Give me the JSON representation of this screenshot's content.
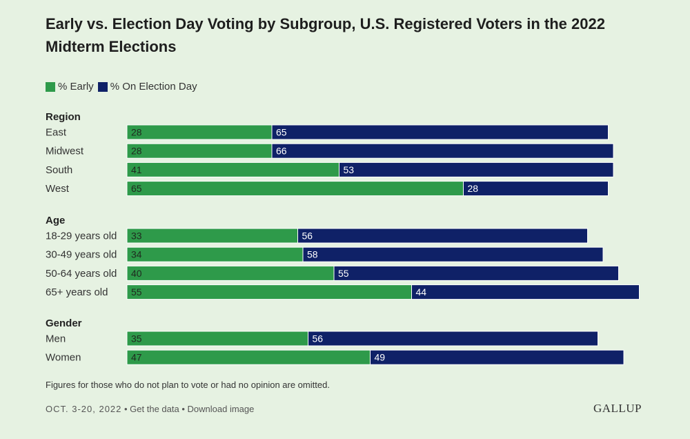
{
  "header": {
    "title": "Early vs. Election Day Voting by Subgroup, U.S. Registered Voters in the 2022 Midterm Elections"
  },
  "legend": [
    {
      "label": "% Early",
      "color": "#2e9a4a"
    },
    {
      "label": "% On Election Day",
      "color": "#0f2167"
    }
  ],
  "chart_data": {
    "type": "bar",
    "orientation": "horizontal",
    "stacked": true,
    "title": "Early vs. Election Day Voting by Subgroup, U.S. Registered Voters in the 2022 Midterm Elections",
    "xlim": [
      0,
      100
    ],
    "grid": false,
    "legend_placement": "top-left",
    "series": [
      {
        "name": "% Early",
        "color": "#2e9a4a"
      },
      {
        "name": "% On Election Day",
        "color": "#0f2167"
      }
    ],
    "groups": [
      {
        "name": "Region",
        "rows": [
          {
            "label": "East",
            "values": [
              28,
              65
            ]
          },
          {
            "label": "Midwest",
            "values": [
              28,
              66
            ]
          },
          {
            "label": "South",
            "values": [
              41,
              53
            ]
          },
          {
            "label": "West",
            "values": [
              65,
              28
            ]
          }
        ]
      },
      {
        "name": "Age",
        "rows": [
          {
            "label": "18-29 years old",
            "values": [
              33,
              56
            ]
          },
          {
            "label": "30-49 years old",
            "values": [
              34,
              58
            ]
          },
          {
            "label": "50-64 years old",
            "values": [
              40,
              55
            ]
          },
          {
            "label": "65+ years old",
            "values": [
              55,
              44
            ]
          }
        ]
      },
      {
        "name": "Gender",
        "rows": [
          {
            "label": "Men",
            "values": [
              35,
              56
            ]
          },
          {
            "label": "Women",
            "values": [
              47,
              49
            ]
          }
        ]
      }
    ]
  },
  "note": "Figures for those who do not plan to vote or had no opinion are omitted.",
  "footer": {
    "date": "OCT. 3-20, 2022",
    "separator": " • ",
    "get_data": "Get the data",
    "download": "Download image"
  },
  "brand": "GALLUP"
}
